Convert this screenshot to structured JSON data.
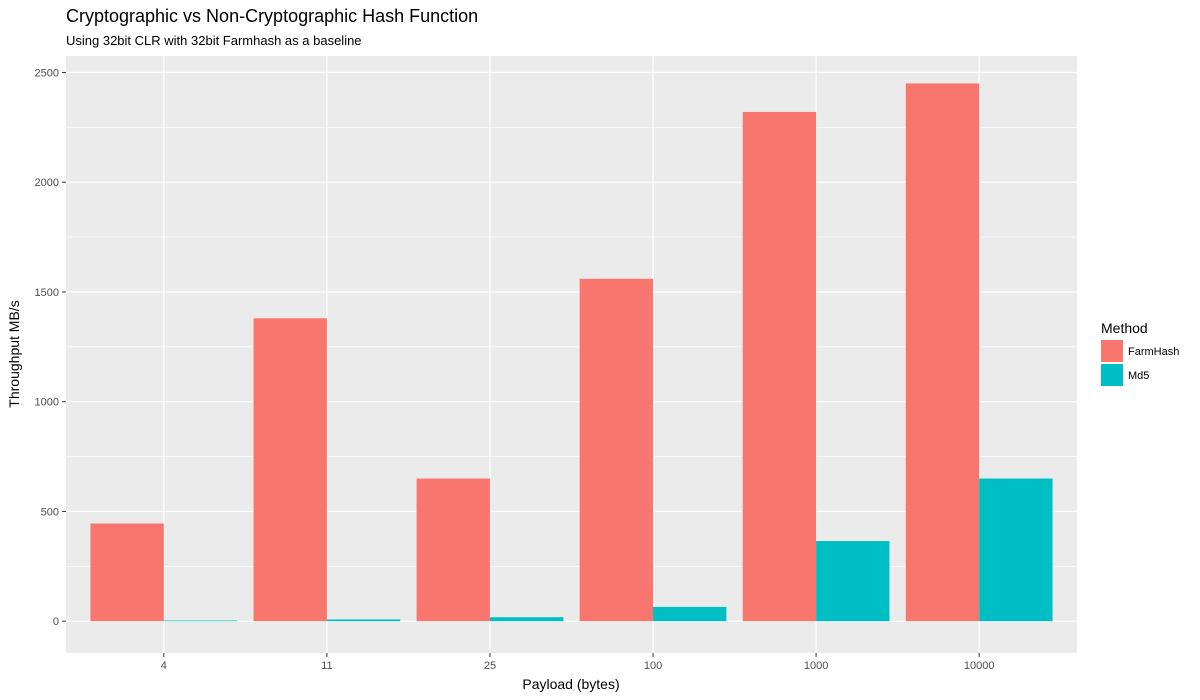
{
  "chart_data": {
    "type": "bar",
    "title": "Cryptographic vs Non-Cryptographic Hash Function",
    "subtitle": "Using 32bit CLR with 32bit Farmhash as a baseline",
    "xlabel": "Payload (bytes)",
    "ylabel": "Throughput MB/s",
    "categories": [
      "4",
      "11",
      "25",
      "100",
      "1000",
      "10000"
    ],
    "series": [
      {
        "name": "FarmHash",
        "color": "#F8766D",
        "values": [
          445,
          1380,
          650,
          1560,
          2320,
          2450
        ]
      },
      {
        "name": "Md5",
        "color": "#00BFC4",
        "values": [
          3,
          8,
          18,
          65,
          365,
          650
        ]
      }
    ],
    "ylim": [
      -145,
      2575
    ],
    "yticks": [
      0,
      500,
      1000,
      1500,
      2000,
      2500
    ],
    "grid": true,
    "legend": {
      "title": "Method",
      "position": "right"
    },
    "panel_background": "#EBEBEB"
  }
}
